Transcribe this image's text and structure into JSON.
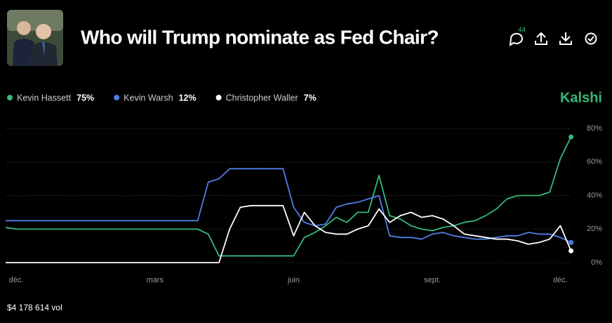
{
  "header": {
    "title": "Who will Trump nominate as Fed Chair?",
    "comment_count": "44",
    "brand": "Kalshi"
  },
  "footer": {
    "volume": "$4 178 614 vol"
  },
  "chart_data": {
    "type": "line",
    "categories": [
      null,
      "déc.",
      null,
      null,
      null,
      null,
      null,
      null,
      null,
      null,
      null,
      null,
      null,
      null,
      "mars",
      null,
      null,
      null,
      null,
      null,
      null,
      null,
      null,
      null,
      null,
      null,
      null,
      "juin",
      null,
      null,
      null,
      null,
      null,
      null,
      null,
      null,
      null,
      null,
      null,
      null,
      "sept.",
      null,
      null,
      null,
      null,
      null,
      null,
      null,
      null,
      null,
      null,
      null,
      "déc.",
      null
    ],
    "series": [
      {
        "name": "Kevin Hassett",
        "color": "#35b978",
        "current": {
          "value": 75,
          "label": "75%"
        },
        "values": [
          21,
          20,
          20,
          20,
          20,
          20,
          20,
          20,
          20,
          20,
          20,
          20,
          20,
          20,
          20,
          20,
          20,
          20,
          20,
          17,
          4,
          4,
          4,
          4,
          4,
          4,
          4,
          4,
          15,
          18,
          22,
          27,
          24,
          30,
          30,
          52,
          28,
          26,
          22,
          20,
          19,
          21,
          22,
          24,
          25,
          28,
          32,
          38,
          40,
          40,
          40,
          42,
          62,
          75
        ]
      },
      {
        "name": "Kevin Warsh",
        "color": "#4f7ee8",
        "current": {
          "value": 12,
          "label": "12%"
        },
        "values": [
          25,
          25,
          25,
          25,
          25,
          25,
          25,
          25,
          25,
          25,
          25,
          25,
          25,
          25,
          25,
          25,
          25,
          25,
          25,
          48,
          50,
          56,
          56,
          56,
          56,
          56,
          56,
          33,
          24,
          22,
          23,
          33,
          35,
          36,
          38,
          40,
          16,
          15,
          15,
          14,
          17,
          18,
          16,
          15,
          14,
          14,
          15,
          16,
          16,
          18,
          17,
          17,
          15,
          12
        ]
      },
      {
        "name": "Christopher Waller",
        "color": "#ffffff",
        "current": {
          "value": 7,
          "label": "7%"
        },
        "values": [
          0,
          0,
          0,
          0,
          0,
          0,
          0,
          0,
          0,
          0,
          0,
          0,
          0,
          0,
          0,
          0,
          0,
          0,
          0,
          0,
          0,
          20,
          33,
          34,
          34,
          34,
          34,
          16,
          30,
          22,
          18,
          17,
          17,
          20,
          22,
          32,
          24,
          28,
          30,
          27,
          28,
          26,
          22,
          17,
          16,
          15,
          14,
          14,
          13,
          11,
          12,
          14,
          22,
          7
        ]
      }
    ],
    "ylim": [
      0,
      80
    ],
    "yticks": [
      {
        "value": 0,
        "label": "0%"
      },
      {
        "value": 20,
        "label": "20%"
      },
      {
        "value": 40,
        "label": "40%"
      },
      {
        "value": 60,
        "label": "60%"
      },
      {
        "value": 80,
        "label": "80%"
      }
    ],
    "grid": true
  }
}
